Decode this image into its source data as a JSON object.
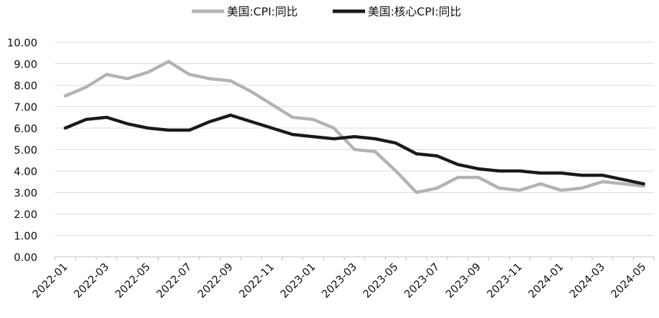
{
  "chart_data": {
    "type": "line",
    "title": "",
    "xlabel": "",
    "ylabel": "",
    "ylim": [
      0,
      10
    ],
    "ytick_step": 1,
    "ytick_decimals": 2,
    "grid": "horizontal",
    "legend_position": "top-center",
    "x": [
      "2022-01",
      "2022-02",
      "2022-03",
      "2022-04",
      "2022-05",
      "2022-06",
      "2022-07",
      "2022-08",
      "2022-09",
      "2022-10",
      "2022-11",
      "2022-12",
      "2023-01",
      "2023-02",
      "2023-03",
      "2023-04",
      "2023-05",
      "2023-06",
      "2023-07",
      "2023-08",
      "2023-09",
      "2023-10",
      "2023-11",
      "2023-12",
      "2024-01",
      "2024-02",
      "2024-03",
      "2024-04",
      "2024-05"
    ],
    "x_tick_labels": [
      "2022-01",
      "2022-03",
      "2022-05",
      "2022-07",
      "2022-09",
      "2022-11",
      "2023-01",
      "2023-03",
      "2023-05",
      "2023-07",
      "2023-09",
      "2023-11",
      "2024-01",
      "2024-03",
      "2024-05"
    ],
    "series": [
      {
        "name": "美国:CPI:同比",
        "color": "#b3b3b3",
        "values": [
          7.5,
          7.9,
          8.5,
          8.3,
          8.6,
          9.1,
          8.5,
          8.3,
          8.2,
          7.7,
          7.1,
          6.5,
          6.4,
          6.0,
          5.0,
          4.9,
          4.0,
          3.0,
          3.2,
          3.7,
          3.7,
          3.2,
          3.1,
          3.4,
          3.1,
          3.2,
          3.5,
          3.4,
          3.3
        ]
      },
      {
        "name": "美国:核心CPI:同比",
        "color": "#1a1a1a",
        "values": [
          6.0,
          6.4,
          6.5,
          6.2,
          6.0,
          5.9,
          5.9,
          6.3,
          6.6,
          6.3,
          6.0,
          5.7,
          5.6,
          5.5,
          5.6,
          5.5,
          5.3,
          4.8,
          4.7,
          4.3,
          4.1,
          4.0,
          4.0,
          3.9,
          3.9,
          3.8,
          3.8,
          3.6,
          3.4
        ]
      }
    ]
  }
}
